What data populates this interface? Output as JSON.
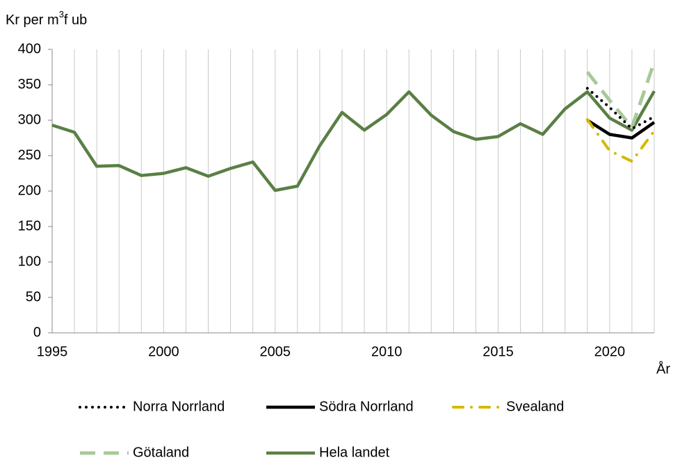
{
  "chart_data": {
    "type": "line",
    "y_label": [
      "Kr per m",
      "3",
      "f ub"
    ],
    "x_label": "År",
    "x": [
      1995,
      1996,
      1997,
      1998,
      1999,
      2000,
      2001,
      2002,
      2003,
      2004,
      2005,
      2006,
      2007,
      2008,
      2009,
      2010,
      2011,
      2012,
      2013,
      2014,
      2015,
      2016,
      2017,
      2018,
      2019,
      2020,
      2021,
      2022
    ],
    "series": [
      {
        "name": "Norra Norrland",
        "color": "#000000",
        "style": "dotted",
        "values": [
          null,
          null,
          null,
          null,
          null,
          null,
          null,
          null,
          null,
          null,
          null,
          null,
          null,
          null,
          null,
          null,
          null,
          null,
          null,
          null,
          null,
          null,
          null,
          null,
          345,
          318,
          288,
          305
        ]
      },
      {
        "name": "Södra Norrland",
        "color": "#000000",
        "style": "solid",
        "values": [
          null,
          null,
          null,
          null,
          null,
          null,
          null,
          null,
          null,
          null,
          null,
          null,
          null,
          null,
          null,
          null,
          null,
          null,
          null,
          null,
          null,
          null,
          null,
          null,
          300,
          280,
          275,
          297
        ]
      },
      {
        "name": "Svealand",
        "color": "#d4b800",
        "style": "dash-dot",
        "values": [
          null,
          null,
          null,
          null,
          null,
          null,
          null,
          null,
          null,
          null,
          null,
          null,
          null,
          null,
          null,
          null,
          null,
          null,
          null,
          null,
          null,
          null,
          null,
          null,
          301,
          257,
          242,
          285
        ]
      },
      {
        "name": "Götaland",
        "color": "#a8c99a",
        "style": "dashed",
        "values": [
          null,
          null,
          null,
          null,
          null,
          null,
          null,
          null,
          null,
          null,
          null,
          null,
          null,
          null,
          null,
          null,
          null,
          null,
          null,
          null,
          null,
          null,
          null,
          null,
          368,
          328,
          290,
          382
        ]
      },
      {
        "name": "Hela landet",
        "color": "#5a7f45",
        "style": "solid",
        "values": [
          293,
          283,
          235,
          236,
          222,
          225,
          233,
          221,
          232,
          241,
          201,
          207,
          264,
          311,
          286,
          308,
          340,
          307,
          284,
          273,
          277,
          295,
          280,
          316,
          340,
          303,
          286,
          341
        ]
      }
    ],
    "xlim": [
      1995,
      2022
    ],
    "xticks": [
      1995,
      2000,
      2005,
      2010,
      2015,
      2020
    ],
    "ylim": [
      0,
      400
    ],
    "yticks": [
      0,
      50,
      100,
      150,
      200,
      250,
      300,
      350,
      400
    ],
    "grid": "vertical"
  }
}
